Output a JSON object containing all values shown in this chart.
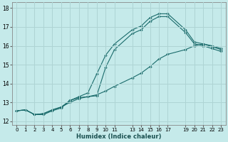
{
  "xlabel": "Humidex (Indice chaleur)",
  "background_color": "#c5eaea",
  "grid_color": "#aed4d4",
  "line_color": "#1a6b6b",
  "xlim": [
    -0.5,
    23.5
  ],
  "ylim": [
    11.8,
    18.3
  ],
  "xticks": [
    0,
    1,
    2,
    3,
    4,
    5,
    6,
    7,
    8,
    9,
    10,
    11,
    13,
    14,
    15,
    16,
    17,
    19,
    20,
    21,
    22,
    23
  ],
  "yticks": [
    12,
    13,
    14,
    15,
    16,
    17,
    18
  ],
  "series1_x": [
    0,
    1,
    2,
    3,
    4,
    5,
    6,
    7,
    8,
    9,
    10,
    11,
    13,
    14,
    15,
    16,
    17,
    19,
    20,
    21,
    22,
    23
  ],
  "series1_y": [
    12.55,
    12.6,
    12.35,
    12.35,
    12.55,
    12.7,
    13.1,
    13.25,
    13.3,
    13.35,
    14.85,
    15.8,
    16.65,
    16.85,
    17.3,
    17.55,
    17.55,
    16.7,
    16.1,
    16.0,
    15.85,
    15.7
  ],
  "series2_x": [
    0,
    1,
    2,
    3,
    4,
    5,
    6,
    7,
    8,
    9,
    10,
    11,
    13,
    14,
    15,
    16,
    17,
    19,
    20,
    21,
    22,
    23
  ],
  "series2_y": [
    12.55,
    12.6,
    12.35,
    12.4,
    12.6,
    12.75,
    13.1,
    13.3,
    13.5,
    14.5,
    15.5,
    16.1,
    16.85,
    17.05,
    17.5,
    17.7,
    17.7,
    16.85,
    16.2,
    16.1,
    16.0,
    15.85
  ],
  "series3_x": [
    0,
    1,
    2,
    3,
    4,
    5,
    6,
    7,
    8,
    9,
    10,
    11,
    13,
    14,
    15,
    16,
    17,
    19,
    20,
    21,
    22,
    23
  ],
  "series3_y": [
    12.55,
    12.6,
    12.35,
    12.4,
    12.6,
    12.75,
    13.0,
    13.2,
    13.3,
    13.4,
    13.6,
    13.85,
    14.3,
    14.55,
    14.9,
    15.3,
    15.55,
    15.8,
    16.0,
    16.1,
    15.95,
    15.8
  ]
}
